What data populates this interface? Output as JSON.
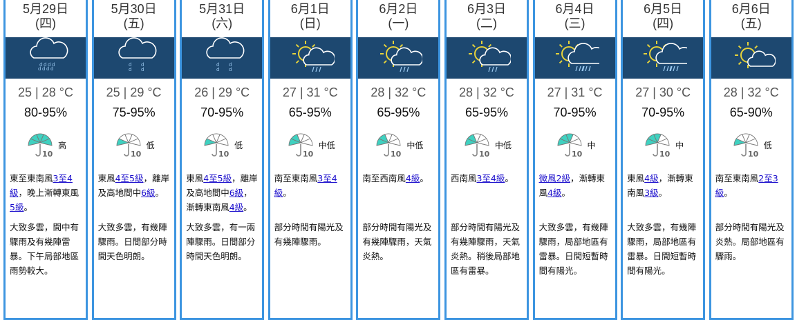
{
  "colors": {
    "card_border": "#3d95e0",
    "icon_band": "#1d4870",
    "link": "#1a0dcc",
    "umbrella_fill": "#3fd1c0",
    "sun": "#e6d23a"
  },
  "days": [
    {
      "date": "5月29日",
      "weekday": "(四)",
      "icon": "heavy-rain-icon",
      "temp": "25 | 28 °C",
      "rh": "80-95%",
      "psr": "高",
      "psr_level": 5,
      "wind": [
        {
          "t": "東至東南風"
        },
        {
          "t": "3至4級",
          "link": true
        },
        {
          "t": "，晚上漸轉東風"
        },
        {
          "t": "5級",
          "link": true
        },
        {
          "t": "。"
        }
      ],
      "desc": "大致多雲，間中有驟雨及有幾陣雷暴。下午局部地區雨勢較大。"
    },
    {
      "date": "5月30日",
      "weekday": "(五)",
      "icon": "light-rain-icon",
      "temp": "25 | 29 °C",
      "rh": "75-95%",
      "psr": "低",
      "psr_level": 1,
      "wind": [
        {
          "t": "東風"
        },
        {
          "t": "4至5級",
          "link": true
        },
        {
          "t": "，離岸及高地間中"
        },
        {
          "t": "6級",
          "link": true
        },
        {
          "t": "。"
        }
      ],
      "desc": "大致多雲，有幾陣驟雨。日間部分時間天色明朗。"
    },
    {
      "date": "5月31日",
      "weekday": "(六)",
      "icon": "light-rain-icon",
      "temp": "26 | 29 °C",
      "rh": "70-95%",
      "psr": "低",
      "psr_level": 1,
      "wind": [
        {
          "t": "東風"
        },
        {
          "t": "4至5級",
          "link": true
        },
        {
          "t": "，離岸及高地間中"
        },
        {
          "t": "6級",
          "link": true
        },
        {
          "t": "，漸轉東南風"
        },
        {
          "t": "4級",
          "link": true
        },
        {
          "t": "。"
        }
      ],
      "desc": "大致多雲，有一兩陣驟雨。日間部分時間天色明朗。"
    },
    {
      "date": "6月1日",
      "weekday": "(日)",
      "icon": "sunny-showers-icon",
      "temp": "27 | 31 °C",
      "rh": "65-95%",
      "psr": "中低",
      "psr_level": 2,
      "wind": [
        {
          "t": "南至東南風"
        },
        {
          "t": "3至4級",
          "link": true
        },
        {
          "t": "。"
        }
      ],
      "desc": "部分時間有陽光及有幾陣驟雨。"
    },
    {
      "date": "6月2日",
      "weekday": "(一)",
      "icon": "sunny-showers-icon",
      "temp": "28 | 32 °C",
      "rh": "65-95%",
      "psr": "中低",
      "psr_level": 2,
      "wind": [
        {
          "t": "南至西南風"
        },
        {
          "t": "4級",
          "link": true
        },
        {
          "t": "。"
        }
      ],
      "desc": "部分時間有陽光及有幾陣驟雨，天氣炎熱。"
    },
    {
      "date": "6月3日",
      "weekday": "(二)",
      "icon": "sunny-showers-icon",
      "temp": "28 | 32 °C",
      "rh": "65-95%",
      "psr": "中低",
      "psr_level": 2,
      "wind": [
        {
          "t": "西南風"
        },
        {
          "t": "3至4級",
          "link": true
        },
        {
          "t": "。"
        }
      ],
      "desc": "部分時間有陽光及有幾陣驟雨，天氣炎熱。稍後局部地區有雷暴。"
    },
    {
      "date": "6月4日",
      "weekday": "(三)",
      "icon": "sunny-rain-icon",
      "temp": "27 | 31 °C",
      "rh": "70-95%",
      "psr": "中",
      "psr_level": 3,
      "wind": [
        {
          "t": "微風2級",
          "link": true
        },
        {
          "t": "，漸轉東風"
        },
        {
          "t": "4級",
          "link": true
        },
        {
          "t": "。"
        }
      ],
      "desc": "大致多雲，有幾陣驟雨，局部地區有雷暴。日間短暫時間有陽光。"
    },
    {
      "date": "6月5日",
      "weekday": "(四)",
      "icon": "sunny-rain-icon",
      "temp": "27 | 30 °C",
      "rh": "70-95%",
      "psr": "中",
      "psr_level": 3,
      "wind": [
        {
          "t": "東風"
        },
        {
          "t": "4級",
          "link": true
        },
        {
          "t": "，漸轉東南風"
        },
        {
          "t": "3級",
          "link": true
        },
        {
          "t": "。"
        }
      ],
      "desc": "大致多雲，有幾陣驟雨，局部地區有雷暴。日間短暫時間有陽光。"
    },
    {
      "date": "6月6日",
      "weekday": "(五)",
      "icon": "sunny-periods-icon",
      "temp": "28 | 32 °C",
      "rh": "65-90%",
      "psr": "低",
      "psr_level": 1,
      "wind": [
        {
          "t": "南至東南風"
        },
        {
          "t": "2至3級",
          "link": true
        },
        {
          "t": "。"
        }
      ],
      "desc": "部分時間有陽光及炎熱。局部地區有驟雨。"
    }
  ]
}
